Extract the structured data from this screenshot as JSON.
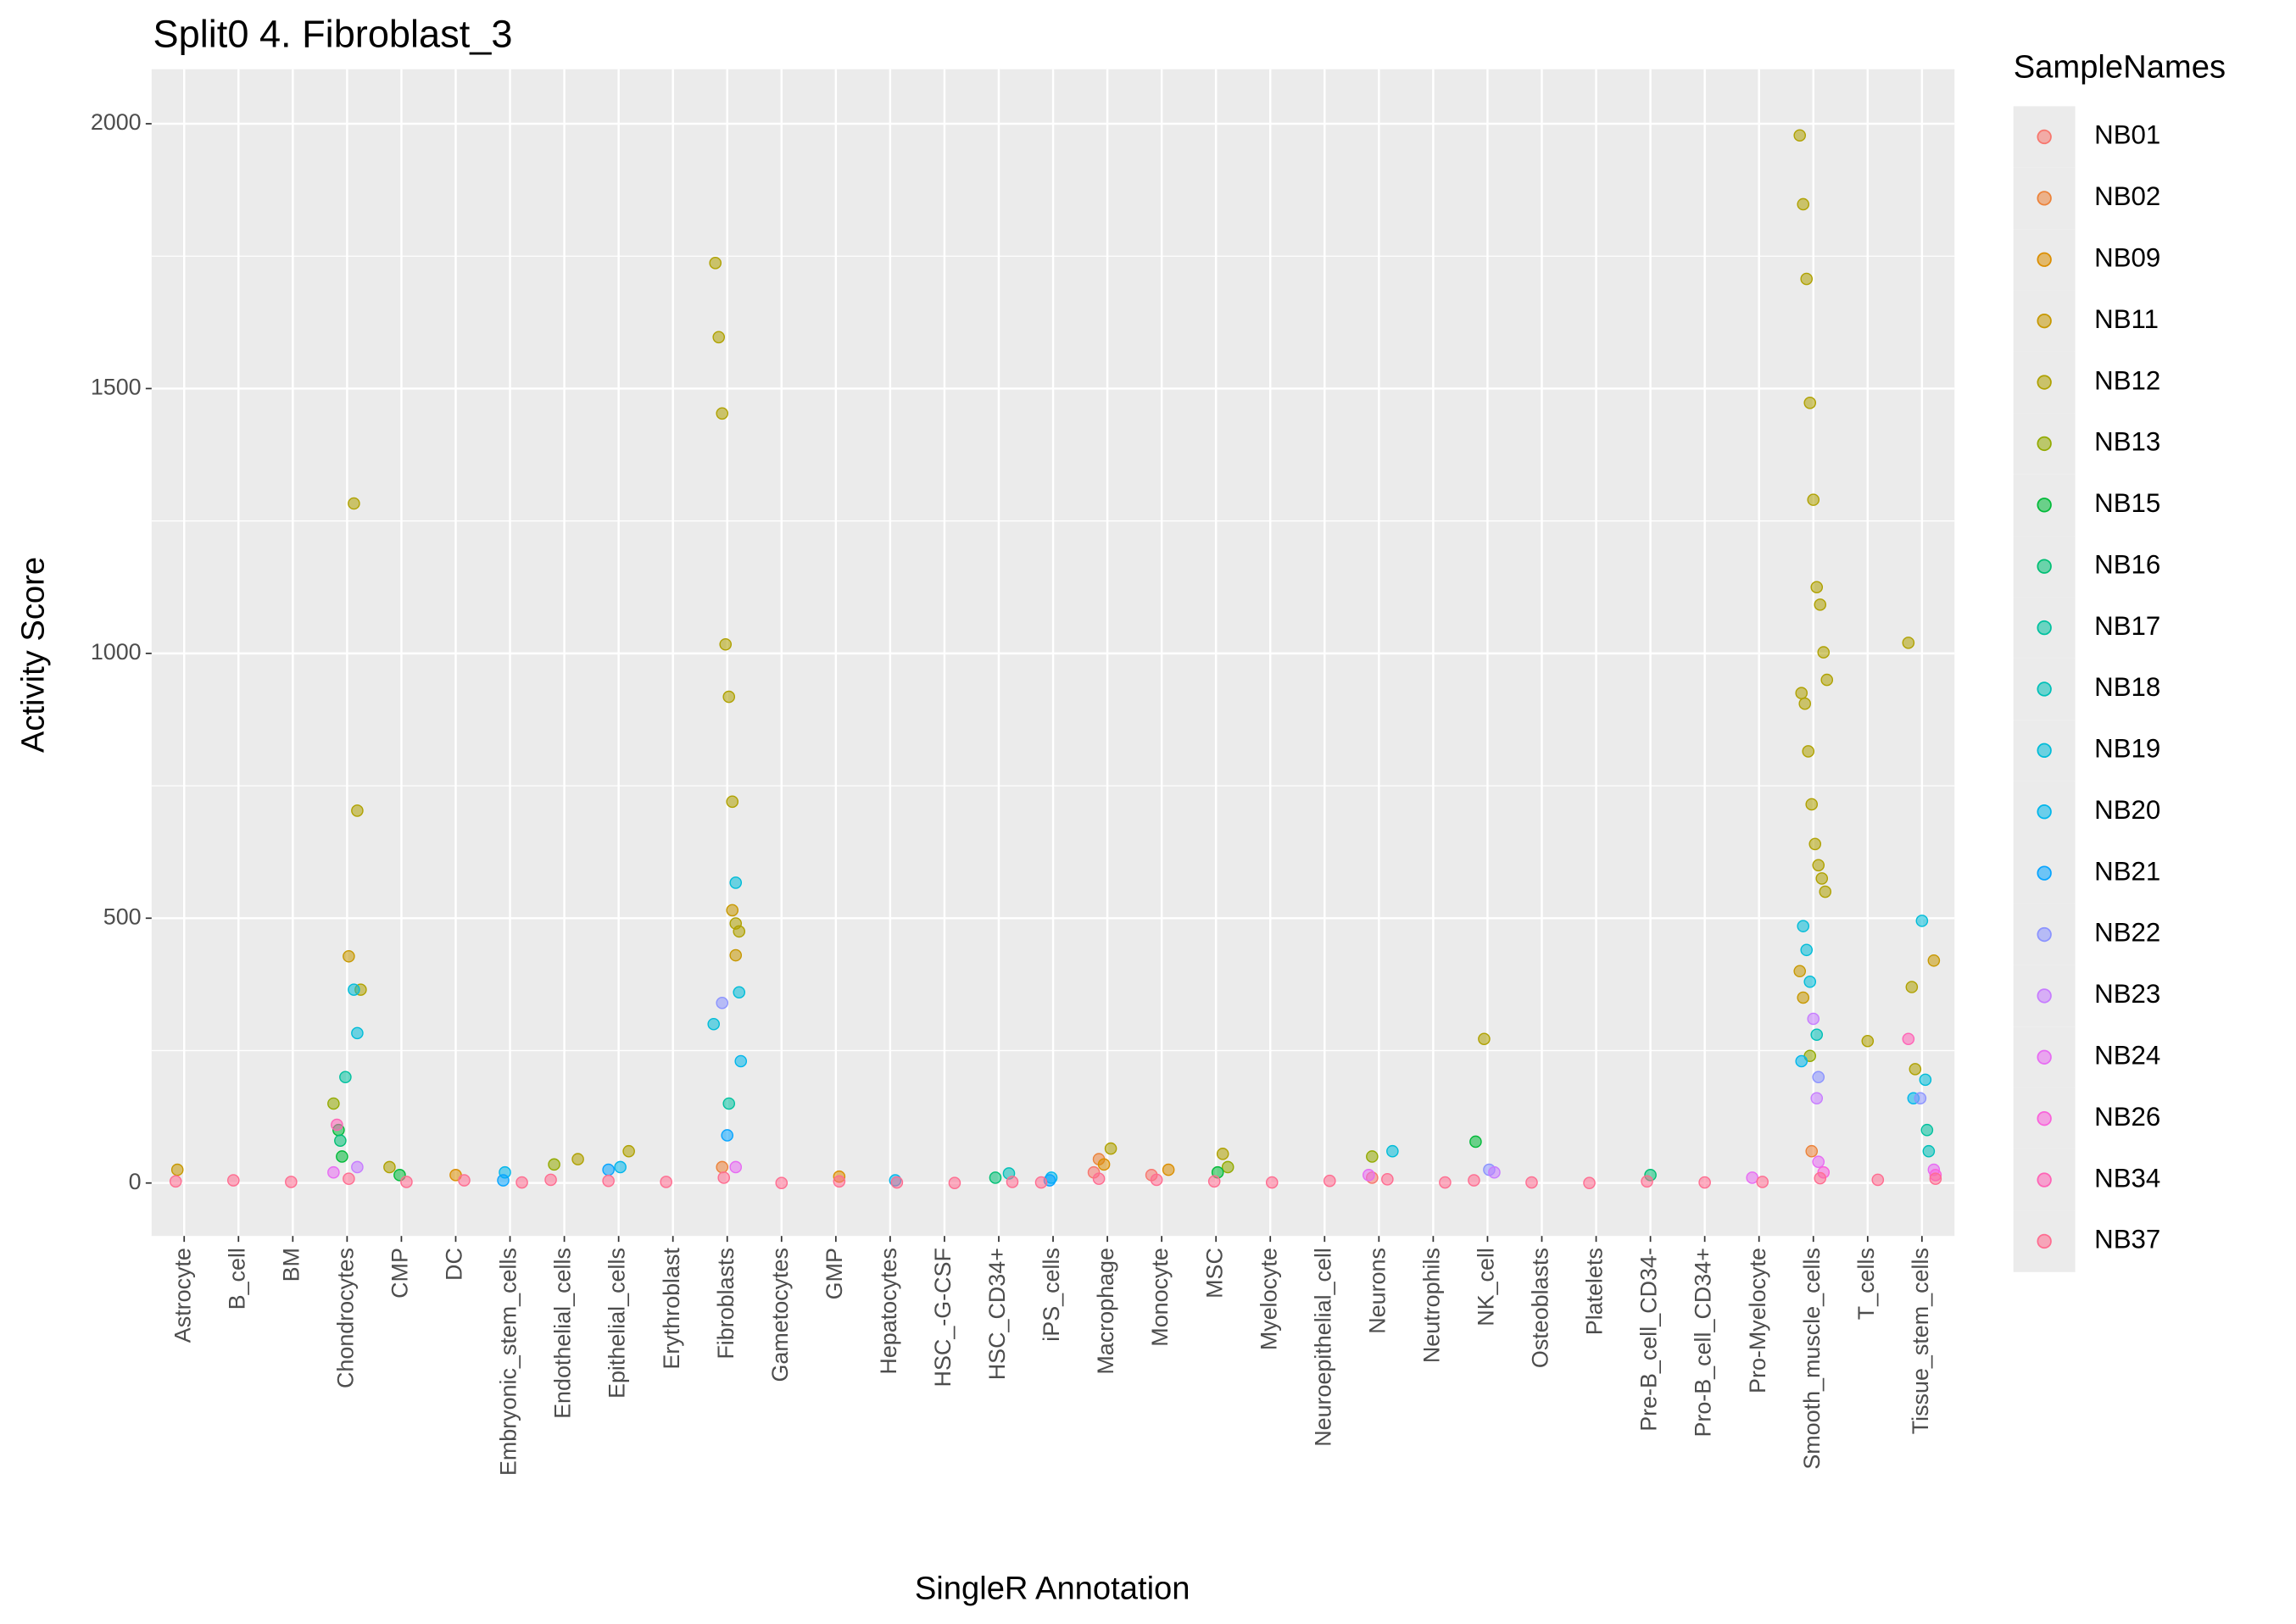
{
  "chart_data": {
    "type": "strip",
    "title": "Split0 4. Fibroblast_3",
    "x_label": "SingleR Annotation",
    "y_label": "Activity Score",
    "legend_title": "SampleNames",
    "legend_position": "right",
    "grid": true,
    "ylim": [
      -100,
      2103
    ],
    "yticks": [
      0,
      500,
      1000,
      1500,
      2000
    ],
    "categories": [
      "Astrocyte",
      "B_cell",
      "BM",
      "Chondrocytes",
      "CMP",
      "DC",
      "Embryonic_stem_cells",
      "Endothelial_cells",
      "Epithelial_cells",
      "Erythroblast",
      "Fibroblasts",
      "Gametocytes",
      "GMP",
      "Hepatocytes",
      "HSC_-G-CSF",
      "HSC_CD34+",
      "iPS_cells",
      "Macrophage",
      "Monocyte",
      "MSC",
      "Myelocyte",
      "Neuroepithelial_cell",
      "Neurons",
      "Neutrophils",
      "NK_cell",
      "Osteoblasts",
      "Platelets",
      "Pre-B_cell_CD34-",
      "Pro-B_cell_CD34+",
      "Pro-Myelocyte",
      "Smooth_muscle_cells",
      "T_cells",
      "Tissue_stem_cells"
    ],
    "series": [
      {
        "name": "NB01",
        "color": "#F8766D",
        "x": [
          "Macrophage",
          "Monocyte",
          "Neurons"
        ],
        "values": [
          20,
          15,
          10
        ]
      },
      {
        "name": "NB02",
        "color": "#EC8239",
        "x": [
          "Macrophage",
          "Fibroblasts",
          "Smooth_muscle_cells"
        ],
        "values": [
          45,
          30,
          60
        ]
      },
      {
        "name": "NB09",
        "color": "#DB8E00",
        "x": [
          "Macrophage",
          "DC",
          "GMP",
          "Monocyte"
        ],
        "values": [
          35,
          15,
          12,
          25
        ]
      },
      {
        "name": "NB11",
        "color": "#C79800",
        "x": [
          "Chondrocytes",
          "Fibroblasts",
          "Fibroblasts",
          "Tissue_stem_cells",
          "Smooth_muscle_cells",
          "Smooth_muscle_cells",
          "Astrocyte"
        ],
        "values": [
          428,
          515,
          430,
          420,
          400,
          350,
          25
        ]
      },
      {
        "name": "NB12",
        "color": "#AFA100",
        "x": [
          "Chondrocytes",
          "Chondrocytes",
          "Chondrocytes",
          "Fibroblasts",
          "Fibroblasts",
          "Fibroblasts",
          "Fibroblasts",
          "Fibroblasts",
          "Fibroblasts",
          "Fibroblasts",
          "Fibroblasts",
          "Smooth_muscle_cells",
          "Smooth_muscle_cells",
          "Smooth_muscle_cells",
          "Smooth_muscle_cells",
          "Smooth_muscle_cells",
          "Smooth_muscle_cells",
          "Smooth_muscle_cells",
          "Smooth_muscle_cells",
          "Smooth_muscle_cells",
          "Smooth_muscle_cells",
          "Smooth_muscle_cells",
          "Smooth_muscle_cells",
          "Smooth_muscle_cells",
          "Smooth_muscle_cells",
          "Smooth_muscle_cells",
          "Smooth_muscle_cells",
          "Smooth_muscle_cells",
          "Tissue_stem_cells",
          "Tissue_stem_cells",
          "Tissue_stem_cells",
          "NK_cell",
          "T_cells",
          "Macrophage",
          "MSC",
          "Epithelial_cells",
          "Endothelial_cells",
          "CMP"
        ],
        "values": [
          1283,
          703,
          365,
          1737,
          1597,
          1453,
          1017,
          918,
          720,
          490,
          475,
          1978,
          1848,
          1707,
          1473,
          1290,
          1125,
          1092,
          1002,
          950,
          925,
          905,
          815,
          715,
          640,
          600,
          575,
          550,
          1020,
          370,
          215,
          272,
          268,
          65,
          55,
          60,
          45,
          30
        ]
      },
      {
        "name": "NB13",
        "color": "#93AA00",
        "x": [
          "MSC",
          "Chondrocytes",
          "Endothelial_cells",
          "Neurons",
          "Smooth_muscle_cells"
        ],
        "values": [
          30,
          150,
          35,
          50,
          240
        ]
      },
      {
        "name": "NB15",
        "color": "#00BA38",
        "x": [
          "NK_cell",
          "Chondrocytes",
          "Chondrocytes",
          "CMP",
          "MSC"
        ],
        "values": [
          78,
          100,
          50,
          15,
          20
        ]
      },
      {
        "name": "NB16",
        "color": "#00BF74",
        "x": [
          "Chondrocytes",
          "HSC_CD34+",
          "Pre-B_cell_CD34-"
        ],
        "values": [
          80,
          10,
          15
        ]
      },
      {
        "name": "NB17",
        "color": "#00C19F",
        "x": [
          "Chondrocytes",
          "Fibroblasts",
          "Tissue_stem_cells"
        ],
        "values": [
          200,
          150,
          100
        ]
      },
      {
        "name": "NB18",
        "color": "#00C0B8",
        "x": [
          "Smooth_muscle_cells",
          "Tissue_stem_cells",
          "HSC_CD34+"
        ],
        "values": [
          280,
          60,
          18
        ]
      },
      {
        "name": "NB19",
        "color": "#00BCD8",
        "x": [
          "Fibroblasts",
          "Fibroblasts",
          "Fibroblasts",
          "Smooth_muscle_cells",
          "Smooth_muscle_cells",
          "Smooth_muscle_cells",
          "Tissue_stem_cells",
          "Tissue_stem_cells",
          "Chondrocytes",
          "Chondrocytes",
          "Neurons"
        ],
        "values": [
          567,
          360,
          300,
          485,
          440,
          380,
          495,
          195,
          365,
          283,
          60
        ]
      },
      {
        "name": "NB20",
        "color": "#00B6EB",
        "x": [
          "Fibroblasts",
          "Smooth_muscle_cells",
          "Tissue_stem_cells",
          "Embryonic_stem_cells",
          "iPS_cells",
          "Epithelial_cells",
          "Hepatocytes"
        ],
        "values": [
          230,
          230,
          160,
          20,
          10,
          30,
          5
        ]
      },
      {
        "name": "NB21",
        "color": "#06A4FF",
        "x": [
          "Epithelial_cells",
          "Embryonic_stem_cells",
          "iPS_cells",
          "Fibroblasts"
        ],
        "values": [
          25,
          5,
          5,
          90
        ]
      },
      {
        "name": "NB22",
        "color": "#8B93FF",
        "x": [
          "Fibroblasts",
          "Tissue_stem_cells",
          "NK_cell",
          "Smooth_muscle_cells"
        ],
        "values": [
          340,
          160,
          25,
          200
        ]
      },
      {
        "name": "NB23",
        "color": "#C77CFF",
        "x": [
          "Smooth_muscle_cells",
          "Smooth_muscle_cells",
          "NK_cell",
          "Chondrocytes"
        ],
        "values": [
          310,
          160,
          20,
          30
        ]
      },
      {
        "name": "NB24",
        "color": "#E76BF3",
        "x": [
          "Smooth_muscle_cells",
          "Fibroblasts",
          "Tissue_stem_cells",
          "Chondrocytes",
          "Neurons",
          "Pro-Myelocyte"
        ],
        "values": [
          40,
          30,
          25,
          20,
          15,
          10
        ]
      },
      {
        "name": "NB26",
        "color": "#FA62DB",
        "x": [
          "Smooth_muscle_cells",
          "Tissue_stem_cells"
        ],
        "values": [
          20,
          15
        ]
      },
      {
        "name": "NB34",
        "color": "#FF63B6",
        "x": [
          "Tissue_stem_cells",
          "Chondrocytes"
        ],
        "values": [
          272,
          110
        ]
      },
      {
        "name": "NB37",
        "color": "#FF6C90",
        "x": [
          "Astrocyte",
          "B_cell",
          "BM",
          "Chondrocytes",
          "CMP",
          "DC",
          "Embryonic_stem_cells",
          "Endothelial_cells",
          "Epithelial_cells",
          "Erythroblast",
          "Fibroblasts",
          "Gametocytes",
          "GMP",
          "Hepatocytes",
          "HSC_-G-CSF",
          "HSC_CD34+",
          "iPS_cells",
          "Macrophage",
          "Monocyte",
          "MSC",
          "Myelocyte",
          "Neuroepithelial_cell",
          "Neurons",
          "Neutrophils",
          "NK_cell",
          "Osteoblasts",
          "Platelets",
          "Pre-B_cell_CD34-",
          "Pro-B_cell_CD34+",
          "Pro-Myelocyte",
          "Smooth_muscle_cells",
          "T_cells",
          "Tissue_stem_cells"
        ],
        "values": [
          3,
          5,
          2,
          8,
          2,
          5,
          1,
          6,
          4,
          2,
          10,
          0,
          3,
          1,
          0,
          2,
          1,
          8,
          6,
          3,
          1,
          4,
          7,
          1,
          5,
          1,
          0,
          3,
          1,
          2,
          9,
          6,
          8
        ]
      }
    ]
  }
}
